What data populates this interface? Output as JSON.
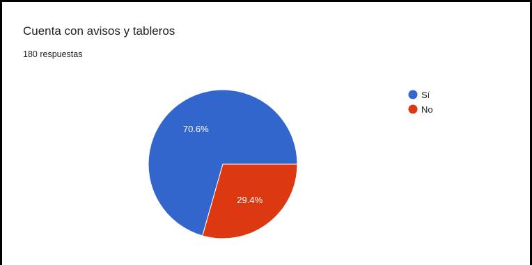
{
  "card": {
    "title": "Cuenta con avisos y tableros",
    "responses": "180 respuestas"
  },
  "chart_data": {
    "type": "pie",
    "title": "Cuenta con avisos y tableros",
    "subtitle": "180 respuestas",
    "categories": [
      "Sí",
      "No"
    ],
    "values": [
      70.6,
      29.4
    ],
    "labels": [
      "70.6%",
      "29.4%"
    ],
    "colors": [
      "#3366cc",
      "#dc3912"
    ],
    "legend_position": "right"
  }
}
